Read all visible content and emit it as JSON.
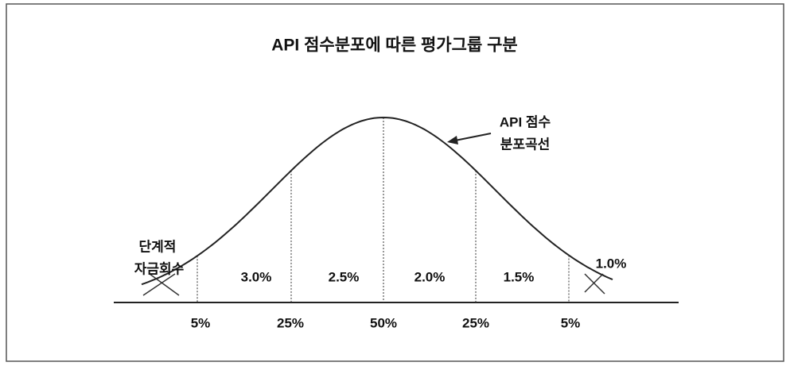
{
  "title": "API 점수분포에 따른 평가그룹 구분",
  "curve_label": [
    "API 점수",
    "분포곡선"
  ],
  "left_label": [
    "단계적",
    "자금회수"
  ],
  "region_labels": [
    "3.0%",
    "2.5%",
    "2.0%",
    "1.5%"
  ],
  "right_label": "1.0%",
  "bottom_labels": [
    "5%",
    "25%",
    "50%",
    "25%",
    "5%"
  ]
}
